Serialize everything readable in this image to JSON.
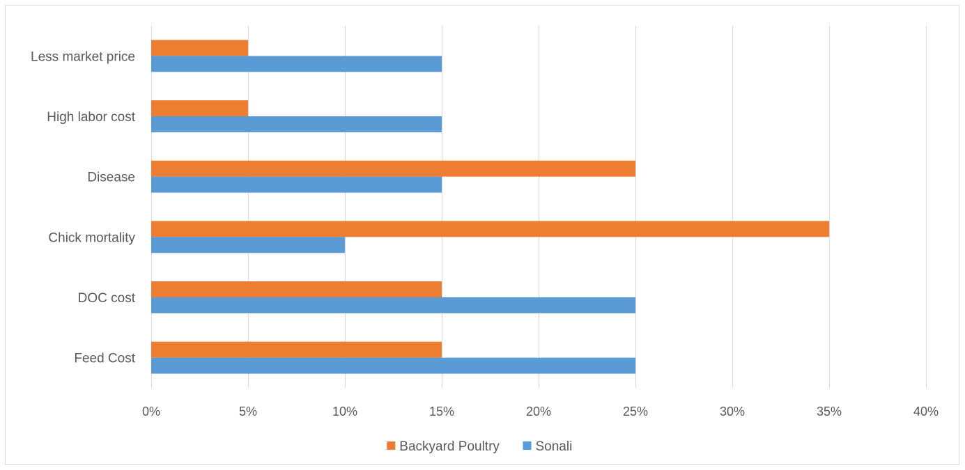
{
  "chart_data": {
    "type": "bar",
    "orientation": "horizontal",
    "title": "",
    "xlabel": "",
    "ylabel": "",
    "categories": [
      "Less market price",
      "High labor cost",
      "Disease",
      "Chick mortality",
      "DOC cost",
      "Feed Cost"
    ],
    "series": [
      {
        "name": "Backyard Poultry",
        "color": "#ED7D31",
        "values": [
          5,
          5,
          25,
          35,
          15,
          15
        ]
      },
      {
        "name": "Sonali",
        "color": "#5B9BD5",
        "values": [
          15,
          15,
          15,
          10,
          25,
          25
        ]
      }
    ],
    "xlim": [
      0,
      40
    ],
    "xticks": [
      0,
      5,
      10,
      15,
      20,
      25,
      30,
      35,
      40
    ],
    "xtick_labels": [
      "0%",
      "5%",
      "10%",
      "15%",
      "20%",
      "25%",
      "30%",
      "35%",
      "40%"
    ],
    "grid": "vertical",
    "grid_color": "#d9d9d9",
    "legend": "bottom-center"
  }
}
